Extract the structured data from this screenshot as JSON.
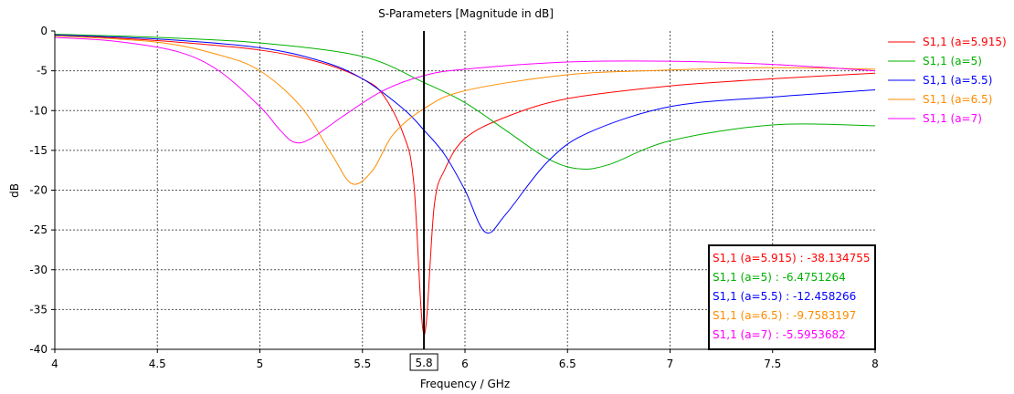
{
  "chart_data": {
    "type": "line",
    "title": "S-Parameters [Magnitude in dB]",
    "xlabel": "Frequency / GHz",
    "ylabel": "dB",
    "xlim": [
      4,
      8
    ],
    "ylim": [
      -40,
      0
    ],
    "xticks": [
      4,
      4.5,
      5,
      5.5,
      6,
      6.5,
      7,
      7.5,
      8
    ],
    "xtick_labels": [
      "4",
      "4.5",
      "5",
      "5.5",
      "6",
      "6.5",
      "7",
      "7.5",
      "8"
    ],
    "yticks": [
      0,
      -5,
      -10,
      -15,
      -20,
      -25,
      -30,
      -35,
      -40
    ],
    "ytick_labels": [
      "0",
      "-5",
      "-10",
      "-15",
      "-20",
      "-25",
      "-30",
      "-35",
      "-40"
    ],
    "grid": true,
    "legend_position": "right",
    "marker": {
      "x": 5.8,
      "label": "5.8"
    },
    "series": [
      {
        "name": "S1,1 (a=5.915)",
        "color": "#ff0000",
        "readout": "S1,1 (a=5.915) : -38.134755",
        "points": [
          [
            4,
            -0.5
          ],
          [
            4.5,
            -1.2
          ],
          [
            5,
            -2.4
          ],
          [
            5.3,
            -4.0
          ],
          [
            5.5,
            -6.0
          ],
          [
            5.6,
            -8.0
          ],
          [
            5.7,
            -13.0
          ],
          [
            5.75,
            -19.0
          ],
          [
            5.8,
            -38.13
          ],
          [
            5.85,
            -22.0
          ],
          [
            5.9,
            -17.5
          ],
          [
            6,
            -13.5
          ],
          [
            6.2,
            -10.8
          ],
          [
            6.5,
            -8.5
          ],
          [
            7,
            -6.9
          ],
          [
            7.5,
            -6.0
          ],
          [
            8,
            -5.3
          ]
        ]
      },
      {
        "name": "S1,1 (a=5)",
        "color": "#00b000",
        "readout": "S1,1 (a=5) : -6.4751264",
        "points": [
          [
            4,
            -0.4
          ],
          [
            4.5,
            -0.8
          ],
          [
            5,
            -1.5
          ],
          [
            5.5,
            -3.2
          ],
          [
            5.8,
            -6.48
          ],
          [
            6,
            -9.0
          ],
          [
            6.2,
            -12.5
          ],
          [
            6.4,
            -16.0
          ],
          [
            6.55,
            -17.3
          ],
          [
            6.7,
            -16.8
          ],
          [
            7,
            -13.8
          ],
          [
            7.5,
            -11.8
          ],
          [
            8,
            -11.9
          ]
        ]
      },
      {
        "name": "S1,1 (a=5.5)",
        "color": "#0000ff",
        "readout": "S1,1 (a=5.5) : -12.458266",
        "points": [
          [
            4,
            -0.5
          ],
          [
            4.5,
            -1.0
          ],
          [
            5,
            -2.1
          ],
          [
            5.3,
            -3.8
          ],
          [
            5.5,
            -6.0
          ],
          [
            5.7,
            -9.8
          ],
          [
            5.8,
            -12.46
          ],
          [
            5.9,
            -15.5
          ],
          [
            6,
            -20.0
          ],
          [
            6.1,
            -25.3
          ],
          [
            6.2,
            -23.0
          ],
          [
            6.4,
            -16.5
          ],
          [
            6.6,
            -12.8
          ],
          [
            7,
            -9.5
          ],
          [
            7.5,
            -8.3
          ],
          [
            8,
            -7.4
          ]
        ]
      },
      {
        "name": "S1,1 (a=6.5)",
        "color": "#ff8c00",
        "readout": "S1,1 (a=6.5) : -9.7583197",
        "points": [
          [
            4,
            -0.6
          ],
          [
            4.5,
            -1.4
          ],
          [
            4.8,
            -3.0
          ],
          [
            5,
            -5.0
          ],
          [
            5.2,
            -9.5
          ],
          [
            5.35,
            -15.5
          ],
          [
            5.45,
            -19.2
          ],
          [
            5.55,
            -17.5
          ],
          [
            5.65,
            -13.0
          ],
          [
            5.8,
            -9.76
          ],
          [
            6,
            -7.5
          ],
          [
            6.5,
            -5.5
          ],
          [
            7,
            -4.9
          ],
          [
            7.5,
            -4.6
          ],
          [
            8,
            -4.8
          ]
        ]
      },
      {
        "name": "S1,1 (a=7)",
        "color": "#ff00ff",
        "readout": "S1,1 (a=7) : -5.5953682",
        "points": [
          [
            4,
            -0.8
          ],
          [
            4.3,
            -1.3
          ],
          [
            4.6,
            -2.6
          ],
          [
            4.8,
            -5.0
          ],
          [
            5,
            -9.5
          ],
          [
            5.1,
            -12.5
          ],
          [
            5.17,
            -14.0
          ],
          [
            5.25,
            -13.5
          ],
          [
            5.4,
            -10.8
          ],
          [
            5.6,
            -7.5
          ],
          [
            5.8,
            -5.6
          ],
          [
            6,
            -4.8
          ],
          [
            6.5,
            -3.9
          ],
          [
            7,
            -3.8
          ],
          [
            7.5,
            -4.2
          ],
          [
            8,
            -5.0
          ]
        ]
      }
    ]
  }
}
